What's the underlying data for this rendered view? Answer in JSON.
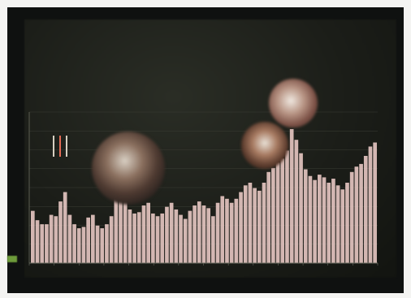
{
  "scene": {
    "poster_title": "",
    "lines": [
      "",
      "",
      "",
      "",
      "",
      ""
    ],
    "bar_fill_levels": [
      0.39,
      0.32,
      0.29,
      0.29,
      0.36,
      0.35,
      0.46,
      0.53,
      0.36,
      0.29,
      0.26,
      0.27,
      0.34,
      0.36,
      0.28,
      0.26,
      0.29,
      0.35,
      0.48,
      0.54,
      0.47,
      0.4,
      0.37,
      0.38,
      0.43,
      0.45,
      0.37,
      0.35,
      0.37,
      0.42,
      0.45,
      0.4,
      0.36,
      0.33,
      0.39,
      0.43,
      0.46,
      0.43,
      0.41,
      0.35,
      0.45,
      0.5,
      0.48,
      0.45,
      0.48,
      0.53,
      0.58,
      0.6,
      0.56,
      0.54,
      0.6,
      0.68,
      0.71,
      0.75,
      0.78,
      0.84,
      1.0,
      0.92,
      0.82,
      0.7,
      0.65,
      0.62,
      0.66,
      0.64,
      0.6,
      0.63,
      0.58,
      0.55,
      0.6,
      0.68,
      0.72,
      0.74,
      0.8,
      0.87,
      0.9
    ],
    "colors": {
      "board": "#1b1d18",
      "title": "#f1e7dd",
      "bars": "#e8c8c3",
      "accent_red": "#e46a54"
    }
  }
}
